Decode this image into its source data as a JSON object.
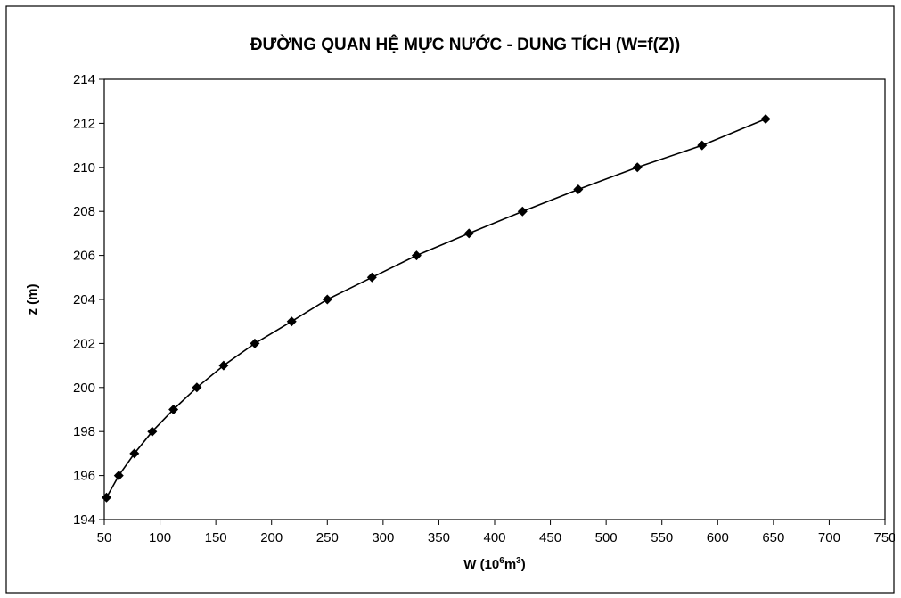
{
  "chart_data": {
    "type": "line",
    "title": "ĐƯỜNG QUAN HỆ MỰC NƯỚC - DUNG TÍCH (W=f(Z))",
    "xlabel": "W (10",
    "xlabel_sup": "6",
    "xlabel_unit": "m",
    "xlabel_unit_sup": "3",
    "xlabel_close": ")",
    "ylabel": "z (m)",
    "xlim": [
      50,
      750
    ],
    "ylim": [
      194,
      214
    ],
    "x_ticks": [
      "50",
      "100",
      "150",
      "200",
      "250",
      "300",
      "350",
      "400",
      "450",
      "500",
      "550",
      "600",
      "650",
      "700",
      "750"
    ],
    "y_ticks": [
      "194",
      "196",
      "198",
      "200",
      "202",
      "204",
      "206",
      "208",
      "210",
      "212",
      "214"
    ],
    "grid": false,
    "series": [
      {
        "marker": "diamond",
        "color": "#000000",
        "points": [
          {
            "x": 52,
            "y": 195
          },
          {
            "x": 63,
            "y": 196
          },
          {
            "x": 77,
            "y": 197
          },
          {
            "x": 93,
            "y": 198
          },
          {
            "x": 112,
            "y": 199
          },
          {
            "x": 133,
            "y": 200
          },
          {
            "x": 157,
            "y": 201
          },
          {
            "x": 185,
            "y": 202
          },
          {
            "x": 218,
            "y": 203
          },
          {
            "x": 250,
            "y": 204
          },
          {
            "x": 290,
            "y": 205
          },
          {
            "x": 330,
            "y": 206
          },
          {
            "x": 377,
            "y": 207
          },
          {
            "x": 425,
            "y": 208
          },
          {
            "x": 475,
            "y": 209
          },
          {
            "x": 528,
            "y": 210
          },
          {
            "x": 586,
            "y": 211
          },
          {
            "x": 643,
            "y": 212.2
          }
        ]
      }
    ]
  }
}
